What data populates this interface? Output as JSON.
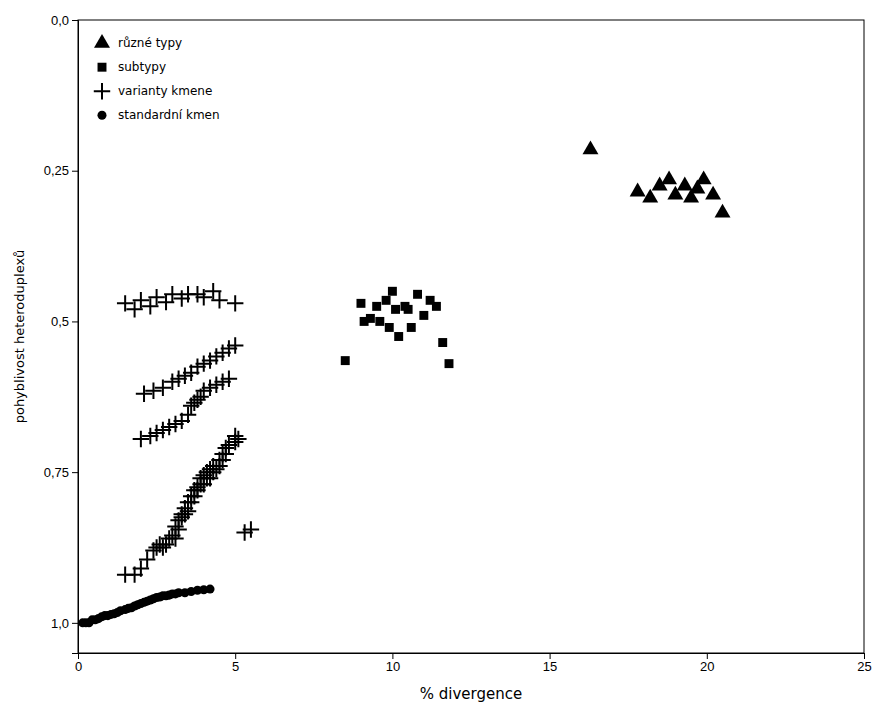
{
  "chart_data": {
    "type": "scatter",
    "x_label": "% divergence",
    "y_label": "pohyblivost heteroduplexů",
    "xlim": [
      0,
      25
    ],
    "ylim": [
      1.05,
      0.0
    ],
    "xticks": [
      0,
      5,
      10,
      15,
      20,
      25
    ],
    "yticks": [
      {
        "value": 0.0,
        "label": "0,0"
      },
      {
        "value": 0.25,
        "label": "0,25"
      },
      {
        "value": 0.5,
        "label": "0,5"
      },
      {
        "value": 0.75,
        "label": "0,75"
      },
      {
        "value": 1.0,
        "label": "1,0"
      }
    ],
    "legend": "upper left",
    "series": [
      {
        "name": "různé typy",
        "marker": "triangle",
        "color": "black",
        "x": [
          16.3,
          17.8,
          18.2,
          18.5,
          18.8,
          19.0,
          19.3,
          19.5,
          19.7,
          19.9,
          20.2,
          20.5
        ],
        "values": [
          0.215,
          0.285,
          0.295,
          0.275,
          0.265,
          0.29,
          0.275,
          0.295,
          0.28,
          0.265,
          0.29,
          0.32
        ]
      },
      {
        "name": "subtypy",
        "marker": "square",
        "color": "black",
        "x": [
          8.5,
          9.0,
          9.1,
          9.3,
          9.5,
          9.6,
          9.8,
          9.9,
          10.0,
          10.1,
          10.2,
          10.4,
          10.5,
          10.6,
          10.8,
          11.0,
          11.2,
          11.4,
          11.6,
          11.8
        ],
        "values": [
          0.565,
          0.47,
          0.5,
          0.495,
          0.475,
          0.5,
          0.465,
          0.51,
          0.45,
          0.48,
          0.525,
          0.475,
          0.48,
          0.51,
          0.455,
          0.49,
          0.465,
          0.475,
          0.535,
          0.57
        ]
      },
      {
        "name": "varianty kmene",
        "marker": "plus",
        "color": "black",
        "x": [
          1.5,
          1.8,
          2.0,
          2.2,
          2.4,
          2.5,
          2.6,
          2.7,
          2.8,
          2.9,
          3.0,
          3.1,
          3.1,
          3.2,
          3.2,
          3.3,
          3.3,
          3.4,
          3.4,
          3.5,
          3.5,
          3.6,
          3.6,
          3.7,
          3.7,
          3.8,
          3.8,
          3.9,
          3.9,
          4.0,
          4.0,
          4.1,
          4.1,
          4.2,
          4.2,
          4.3,
          4.3,
          4.4,
          4.5,
          4.5,
          4.6,
          4.6,
          4.7,
          4.7,
          4.8,
          5.0,
          5.0,
          5.1,
          5.3,
          5.5,
          2.0,
          2.3,
          2.5,
          2.7,
          2.9,
          3.1,
          3.3,
          3.5,
          3.6,
          3.7,
          3.8,
          3.9,
          4.0,
          4.2,
          4.4,
          4.6,
          4.8,
          2.1,
          2.4,
          2.7,
          3.0,
          3.2,
          3.4,
          3.6,
          3.8,
          4.0,
          4.2,
          4.4,
          4.6,
          4.8,
          5.0,
          1.5,
          2.0,
          2.5,
          3.0,
          3.5,
          4.0,
          4.5,
          5.0,
          1.8,
          2.3,
          2.8,
          3.3,
          3.8,
          4.3
        ],
        "values": [
          0.92,
          0.92,
          0.91,
          0.895,
          0.88,
          0.875,
          0.87,
          0.875,
          0.87,
          0.86,
          0.855,
          0.86,
          0.84,
          0.845,
          0.83,
          0.825,
          0.82,
          0.82,
          0.81,
          0.8,
          0.815,
          0.8,
          0.79,
          0.79,
          0.78,
          0.775,
          0.78,
          0.77,
          0.76,
          0.755,
          0.77,
          0.76,
          0.75,
          0.745,
          0.76,
          0.75,
          0.74,
          0.745,
          0.73,
          0.74,
          0.73,
          0.72,
          0.72,
          0.71,
          0.705,
          0.69,
          0.7,
          0.695,
          0.85,
          0.845,
          0.695,
          0.69,
          0.685,
          0.68,
          0.675,
          0.67,
          0.665,
          0.655,
          0.64,
          0.635,
          0.63,
          0.625,
          0.615,
          0.61,
          0.605,
          0.6,
          0.595,
          0.62,
          0.615,
          0.61,
          0.6,
          0.595,
          0.59,
          0.585,
          0.575,
          0.57,
          0.565,
          0.558,
          0.552,
          0.545,
          0.54,
          0.47,
          0.465,
          0.46,
          0.455,
          0.455,
          0.46,
          0.465,
          0.47,
          0.48,
          0.475,
          0.468,
          0.462,
          0.455,
          0.45
        ]
      },
      {
        "name": "standardní kmen",
        "marker": "circle",
        "color": "black",
        "x": [
          0.15,
          0.25,
          0.35,
          0.45,
          0.55,
          0.65,
          0.75,
          0.85,
          0.95,
          1.05,
          1.15,
          1.25,
          1.35,
          1.5,
          1.6,
          1.7,
          1.8,
          1.9,
          2.0,
          2.1,
          2.2,
          2.3,
          2.4,
          2.5,
          2.6,
          2.7,
          2.8,
          2.9,
          3.0,
          3.1,
          3.2,
          3.4,
          3.6,
          3.8,
          4.0,
          4.2
        ],
        "values": [
          1.0,
          1.0,
          1.0,
          0.995,
          0.995,
          0.993,
          0.99,
          0.988,
          0.988,
          0.986,
          0.985,
          0.983,
          0.98,
          0.978,
          0.976,
          0.975,
          0.972,
          0.97,
          0.968,
          0.966,
          0.964,
          0.962,
          0.96,
          0.958,
          0.957,
          0.955,
          0.955,
          0.954,
          0.952,
          0.952,
          0.95,
          0.95,
          0.948,
          0.946,
          0.945,
          0.944
        ]
      }
    ]
  }
}
